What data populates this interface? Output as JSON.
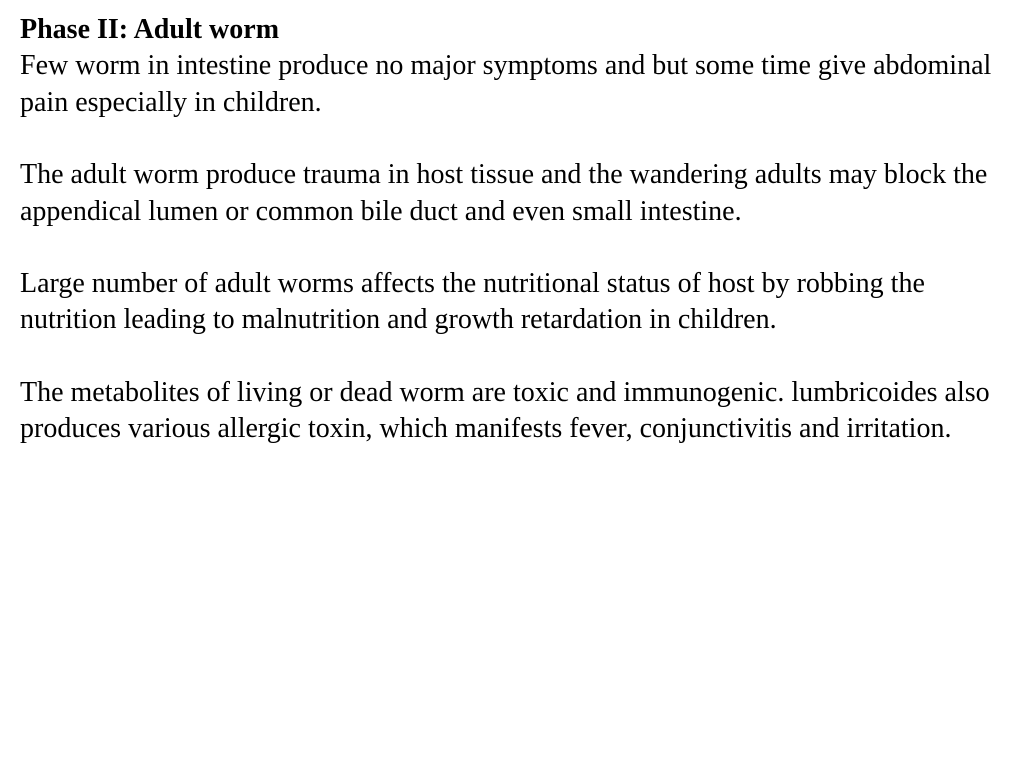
{
  "document": {
    "heading": "Phase II: Adult worm",
    "paragraphs": [
      "Few worm in intestine produce no major symptoms and but some time give abdominal pain especially in children.",
      "The adult worm produce trauma in host tissue and the wandering adults may block the appendical lumen or common bile duct and even small intestine.",
      "Large number of adult worms affects the nutritional status of host by robbing the nutrition leading to malnutrition and growth retardation in children.",
      "The metabolites of living or dead worm are toxic and immunogenic. lumbricoides also produces various allergic toxin, which manifests fever, conjunctivitis and irritation."
    ],
    "style": {
      "font_family": "Times New Roman",
      "heading_fontsize": 28,
      "body_fontsize": 28,
      "text_color": "#000000",
      "background_color": "#ffffff",
      "heading_weight": "bold",
      "body_weight": "normal"
    }
  }
}
